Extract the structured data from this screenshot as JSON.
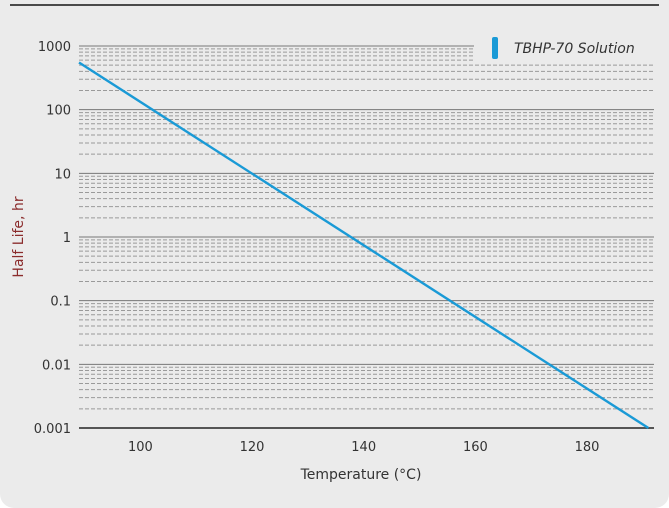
{
  "chart_data": {
    "type": "line",
    "title": "",
    "xlabel": "Temperature (°C)",
    "ylabel": "Half Life, hr",
    "x_scale": "linear",
    "y_scale": "log",
    "xlim": [
      89,
      192
    ],
    "ylim": [
      0.001,
      1000
    ],
    "x_ticks": [
      100,
      120,
      140,
      160,
      180
    ],
    "y_ticks": [
      1000,
      100,
      10,
      1,
      0.1,
      0.01,
      0.001
    ],
    "y_tick_labels": [
      "1000",
      "100",
      "10",
      "1",
      "0.1",
      "0.01",
      "0.001"
    ],
    "grid": true,
    "legend_position": "top-right",
    "series": [
      {
        "name": "TBHP-70 Solution",
        "color": "#1a9ad6",
        "points": [
          {
            "x": 89,
            "y": 550
          },
          {
            "x": 191,
            "y": 0.001
          }
        ]
      }
    ]
  }
}
